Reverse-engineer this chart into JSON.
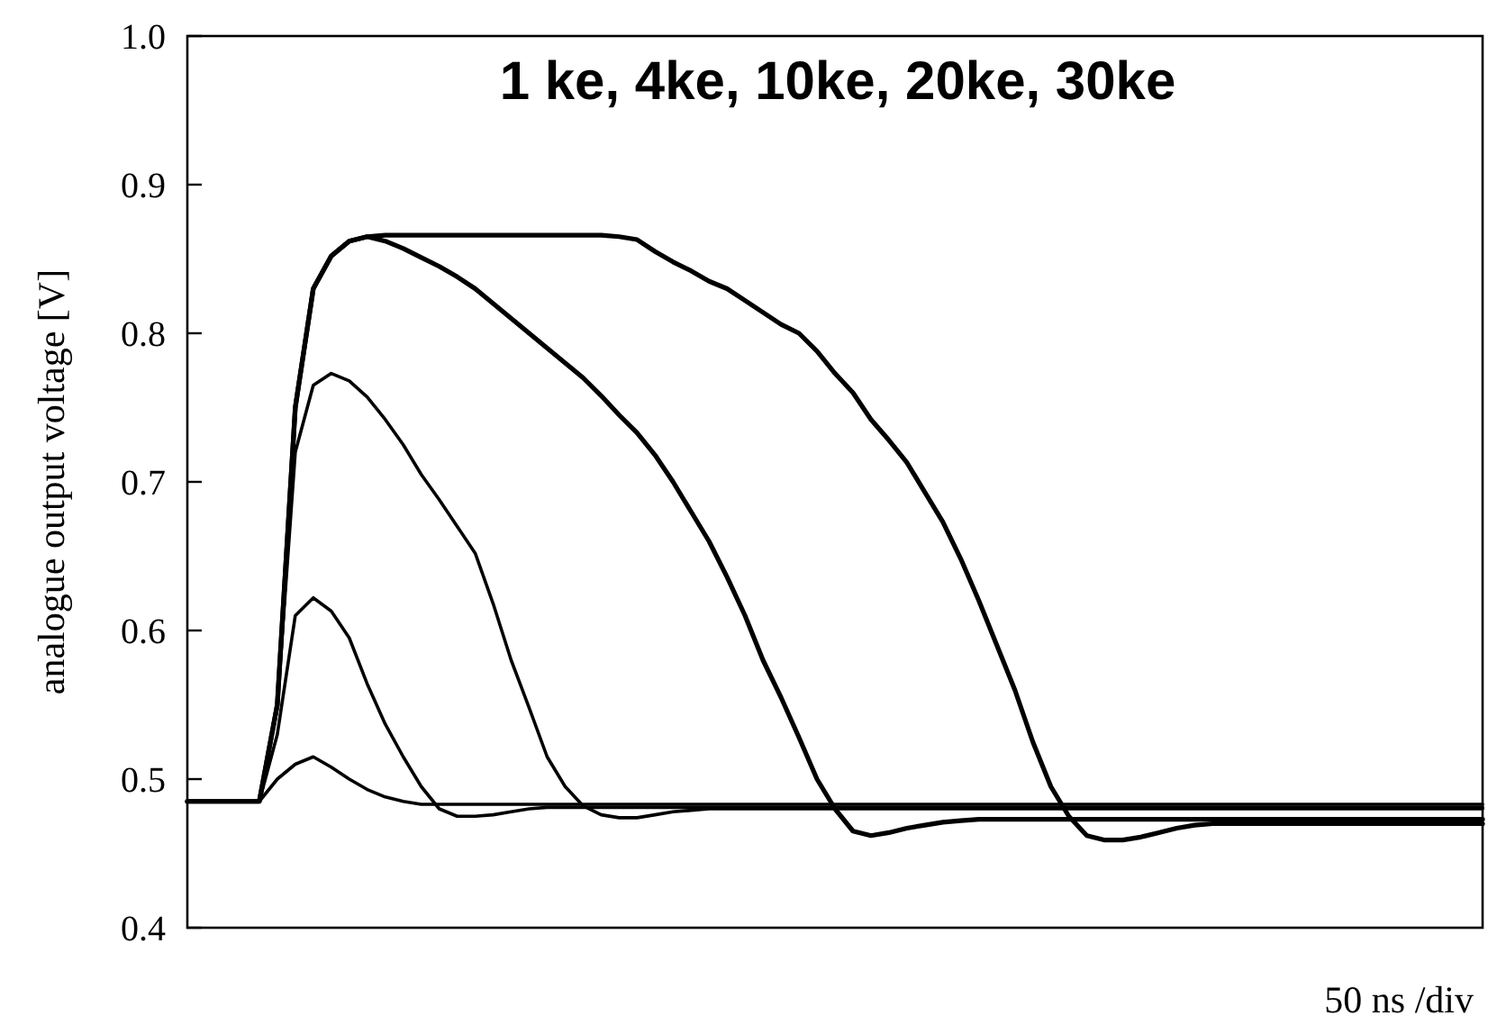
{
  "chart_data": {
    "type": "line",
    "title": "1 ke, 4ke, 10ke, 20ke, 30ke",
    "xlabel": "50 ns /div",
    "ylabel": "analogue output voltage [V]",
    "categories": [
      null,
      null,
      null,
      null,
      null,
      null,
      null,
      null,
      null,
      null,
      null,
      null,
      null,
      null,
      null,
      null,
      null,
      null,
      null,
      null,
      null,
      null,
      null,
      null,
      null,
      null,
      null,
      null,
      null,
      null,
      null,
      null,
      null,
      null,
      null,
      null,
      null,
      null,
      null,
      null,
      null,
      null,
      null,
      null,
      null,
      null,
      null,
      null,
      null,
      null,
      null,
      null,
      null,
      null,
      null,
      null,
      null,
      null,
      null,
      null,
      null,
      null,
      null,
      null,
      null,
      null,
      null,
      null,
      null,
      null,
      null,
      null,
      null
    ],
    "ylim": [
      0.4,
      1.0
    ],
    "yticks": [
      {
        "value": 0.4,
        "label": "0.4"
      },
      {
        "value": 0.5,
        "label": "0.5"
      },
      {
        "value": 0.6,
        "label": "0.6"
      },
      {
        "value": 0.7,
        "label": "0.7"
      },
      {
        "value": 0.8,
        "label": "0.8"
      },
      {
        "value": 0.9,
        "label": "0.9"
      },
      {
        "value": 1.0,
        "label": "1.0"
      }
    ],
    "series": [
      {
        "color": "#000000",
        "values": [
          0.485,
          0.485,
          0.485,
          0.485,
          0.485,
          0.5,
          0.51,
          0.515,
          0.508,
          0.5,
          0.493,
          0.488,
          0.485,
          0.483,
          0.483,
          0.483,
          0.483,
          0.483,
          0.483,
          0.483,
          0.483,
          0.483,
          0.483,
          0.483,
          0.483,
          0.483,
          0.483,
          0.483,
          0.483,
          0.483,
          0.483,
          0.483,
          0.483,
          0.483,
          0.483,
          0.483,
          0.483,
          0.483,
          0.483,
          0.483,
          0.483,
          0.483,
          0.483,
          0.483,
          0.483,
          0.483,
          0.483,
          0.483,
          0.483,
          0.483,
          0.483,
          0.483,
          0.483,
          0.483,
          0.483,
          0.483,
          0.483,
          0.483,
          0.483,
          0.483,
          0.483,
          0.483,
          0.483,
          0.483,
          0.483,
          0.483,
          0.483,
          0.483,
          0.483,
          0.483,
          0.483,
          0.483,
          0.483
        ]
      },
      {
        "color": "#000000",
        "values": [
          0.485,
          0.485,
          0.485,
          0.485,
          0.485,
          0.53,
          0.61,
          0.622,
          0.613,
          0.595,
          0.564,
          0.537,
          0.515,
          0.495,
          0.48,
          0.475,
          0.475,
          0.476,
          0.478,
          0.48,
          0.481,
          0.481,
          0.481,
          0.481,
          0.481,
          0.481,
          0.481,
          0.481,
          0.481,
          0.481,
          0.481,
          0.481,
          0.481,
          0.481,
          0.481,
          0.481,
          0.481,
          0.481,
          0.481,
          0.481,
          0.481,
          0.481,
          0.481,
          0.481,
          0.481,
          0.481,
          0.481,
          0.481,
          0.481,
          0.481,
          0.481,
          0.481,
          0.481,
          0.481,
          0.481,
          0.481,
          0.481,
          0.481,
          0.481,
          0.481,
          0.481,
          0.481,
          0.481,
          0.481,
          0.481,
          0.481,
          0.481,
          0.481,
          0.481,
          0.481,
          0.481,
          0.481,
          0.481
        ]
      },
      {
        "color": "#000000",
        "values": [
          0.485,
          0.485,
          0.485,
          0.485,
          0.485,
          0.55,
          0.72,
          0.765,
          0.773,
          0.768,
          0.757,
          0.742,
          0.725,
          0.705,
          0.688,
          0.67,
          0.652,
          0.618,
          0.58,
          0.548,
          0.515,
          0.495,
          0.482,
          0.476,
          0.474,
          0.474,
          0.476,
          0.478,
          0.479,
          0.48,
          0.48,
          0.48,
          0.48,
          0.48,
          0.48,
          0.48,
          0.48,
          0.48,
          0.48,
          0.48,
          0.48,
          0.48,
          0.48,
          0.48,
          0.48,
          0.48,
          0.48,
          0.48,
          0.48,
          0.48,
          0.48,
          0.48,
          0.48,
          0.48,
          0.48,
          0.48,
          0.48,
          0.48,
          0.48,
          0.48,
          0.48,
          0.48,
          0.48,
          0.48,
          0.48,
          0.48,
          0.48,
          0.48,
          0.48,
          0.48,
          0.48,
          0.48,
          0.48
        ]
      },
      {
        "color": "#000000",
        "values": [
          0.485,
          0.485,
          0.485,
          0.485,
          0.485,
          0.55,
          0.75,
          0.83,
          0.852,
          0.862,
          0.865,
          0.862,
          0.857,
          0.851,
          0.845,
          0.838,
          0.83,
          0.82,
          0.81,
          0.8,
          0.79,
          0.78,
          0.77,
          0.758,
          0.745,
          0.733,
          0.718,
          0.7,
          0.68,
          0.66,
          0.636,
          0.61,
          0.58,
          0.555,
          0.528,
          0.5,
          0.48,
          0.465,
          0.462,
          0.464,
          0.467,
          0.469,
          0.471,
          0.472,
          0.473,
          0.473,
          0.473,
          0.473,
          0.473,
          0.473,
          0.473,
          0.473,
          0.473,
          0.473,
          0.473,
          0.473,
          0.473,
          0.473,
          0.473,
          0.473,
          0.473,
          0.473,
          0.473,
          0.473,
          0.473,
          0.473,
          0.473,
          0.473,
          0.473,
          0.473,
          0.473,
          0.473,
          0.473
        ]
      },
      {
        "color": "#000000",
        "values": [
          0.485,
          0.485,
          0.485,
          0.485,
          0.485,
          0.55,
          0.75,
          0.83,
          0.852,
          0.862,
          0.865,
          0.866,
          0.866,
          0.866,
          0.866,
          0.866,
          0.866,
          0.866,
          0.866,
          0.866,
          0.866,
          0.866,
          0.866,
          0.866,
          0.865,
          0.863,
          0.855,
          0.848,
          0.842,
          0.835,
          0.83,
          0.822,
          0.814,
          0.806,
          0.8,
          0.788,
          0.773,
          0.76,
          0.742,
          0.728,
          0.713,
          0.693,
          0.673,
          0.648,
          0.62,
          0.59,
          0.56,
          0.525,
          0.495,
          0.475,
          0.462,
          0.459,
          0.459,
          0.461,
          0.464,
          0.467,
          0.469,
          0.47,
          0.47,
          0.47,
          0.47,
          0.47,
          0.47,
          0.47,
          0.47,
          0.47,
          0.47,
          0.47,
          0.47,
          0.47,
          0.47,
          0.47,
          0.47
        ]
      }
    ],
    "marker": "none",
    "line_style": "solid"
  }
}
